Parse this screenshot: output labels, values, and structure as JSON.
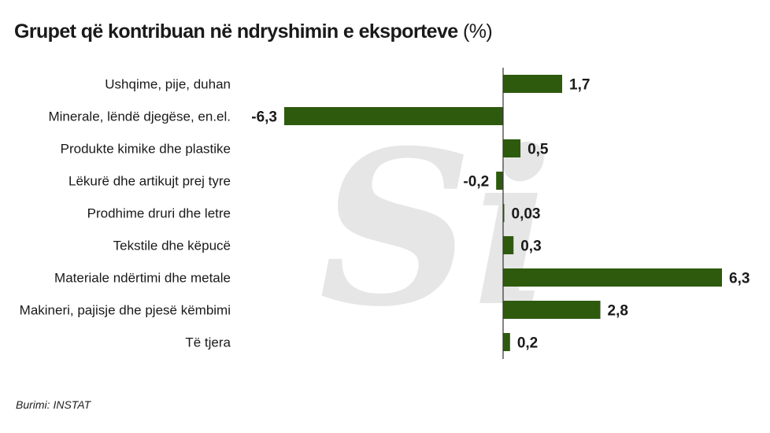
{
  "title": {
    "main": "Grupet që kontribuan në ndryshimin e eksporteve",
    "unit": "(%)"
  },
  "source": "Burimi: INSTAT",
  "watermark": "Si",
  "colors": {
    "bar": "#2e5a0e",
    "axis": "#333333",
    "text": "#1a1a1a",
    "watermark": "#e6e6e6"
  },
  "chart_data": {
    "type": "bar",
    "orientation": "horizontal",
    "categories": [
      "Ushqime, pije, duhan",
      "Minerale, lëndë djegëse, en.el.",
      "Produkte kimike dhe plastike",
      "Lëkurë dhe artikujt prej tyre",
      "Prodhime druri dhe letre",
      "Tekstile dhe këpucë",
      "Materiale ndërtimi dhe metale",
      "Makineri, pajisje dhe pjesë këmbimi",
      "Të tjera"
    ],
    "values": [
      1.7,
      -6.3,
      0.5,
      -0.2,
      0.03,
      0.3,
      6.3,
      2.8,
      0.2
    ],
    "value_labels": [
      "1,7",
      "-6,3",
      "0,5",
      "-0,2",
      "0,03",
      "0,3",
      "6,3",
      "2,8",
      "0,2"
    ],
    "xlim": [
      -6.3,
      6.3
    ],
    "grid": false,
    "legend": "none"
  }
}
